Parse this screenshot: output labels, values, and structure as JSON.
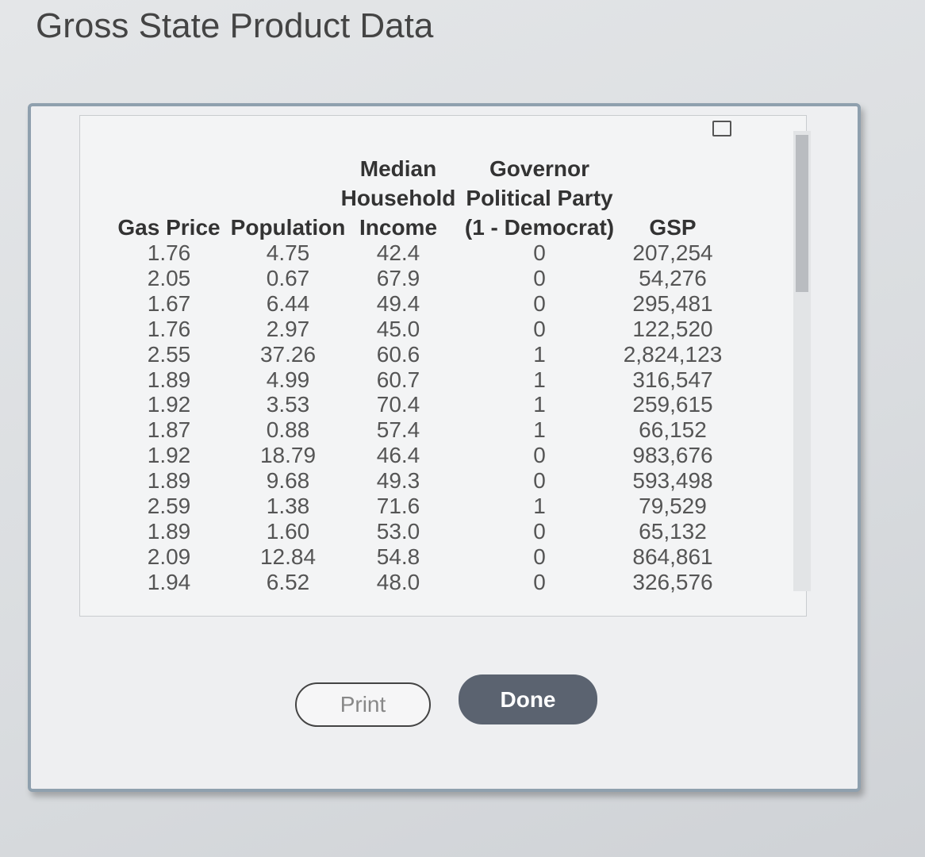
{
  "header": {
    "title": "Gross State Product Data"
  },
  "table": {
    "columns": [
      [
        "Gas Price"
      ],
      [
        "Population"
      ],
      [
        "Median",
        "Household",
        "Income"
      ],
      [
        "Governor",
        "Political Party",
        "(1 - Democrat)"
      ],
      [
        "GSP"
      ]
    ],
    "rows": [
      [
        "1.76",
        "4.75",
        "42.4",
        "0",
        "207,254"
      ],
      [
        "2.05",
        "0.67",
        "67.9",
        "0",
        "54,276"
      ],
      [
        "1.67",
        "6.44",
        "49.4",
        "0",
        "295,481"
      ],
      [
        "1.76",
        "2.97",
        "45.0",
        "0",
        "122,520"
      ],
      [
        "2.55",
        "37.26",
        "60.6",
        "1",
        "2,824,123"
      ],
      [
        "1.89",
        "4.99",
        "60.7",
        "1",
        "316,547"
      ],
      [
        "1.92",
        "3.53",
        "70.4",
        "1",
        "259,615"
      ],
      [
        "1.87",
        "0.88",
        "57.4",
        "1",
        "66,152"
      ],
      [
        "1.92",
        "18.79",
        "46.4",
        "0",
        "983,676"
      ],
      [
        "1.89",
        "9.68",
        "49.3",
        "0",
        "593,498"
      ],
      [
        "2.59",
        "1.38",
        "71.6",
        "1",
        "79,529"
      ],
      [
        "1.89",
        "1.60",
        "53.0",
        "0",
        "65,132"
      ],
      [
        "2.09",
        "12.84",
        "54.8",
        "0",
        "864,861"
      ],
      [
        "1.94",
        "6.52",
        "48.0",
        "0",
        "326,576"
      ]
    ]
  },
  "buttons": {
    "print": "Print",
    "done": "Done"
  }
}
